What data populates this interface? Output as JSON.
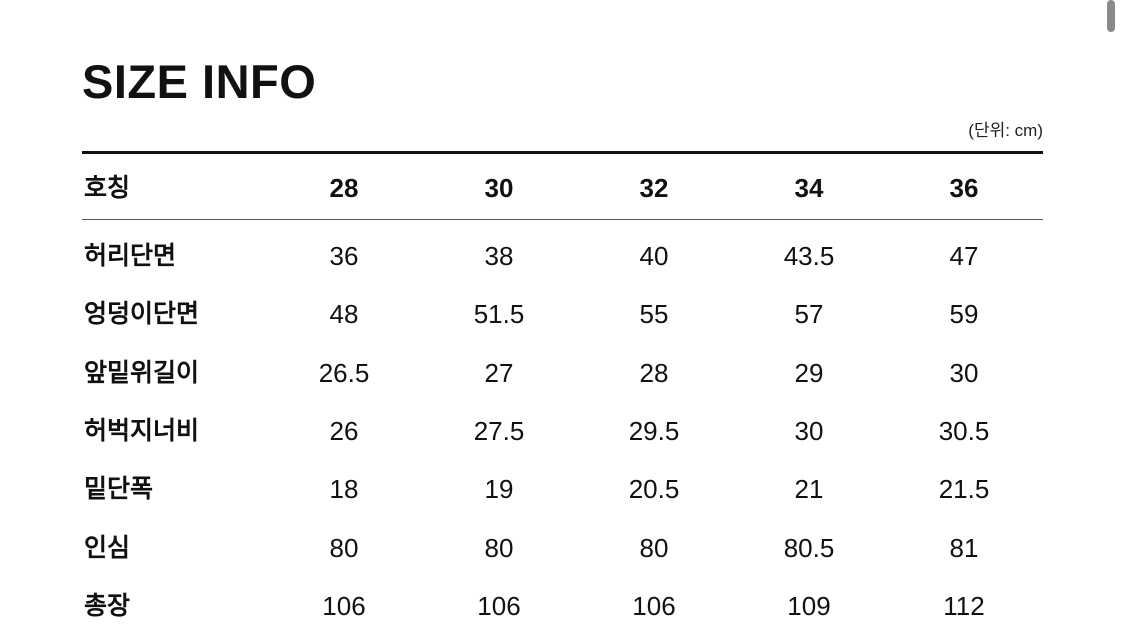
{
  "title": "SIZE INFO",
  "unit": "(단위: cm)",
  "table": {
    "header_label": "호칭",
    "sizes": [
      "28",
      "30",
      "32",
      "34",
      "36"
    ],
    "rows": [
      {
        "label": "허리단면",
        "values": [
          "36",
          "38",
          "40",
          "43.5",
          "47"
        ]
      },
      {
        "label": "엉덩이단면",
        "values": [
          "48",
          "51.5",
          "55",
          "57",
          "59"
        ]
      },
      {
        "label": "앞밑위길이",
        "values": [
          "26.5",
          "27",
          "28",
          "29",
          "30"
        ]
      },
      {
        "label": "허벅지너비",
        "values": [
          "26",
          "27.5",
          "29.5",
          "30",
          "30.5"
        ]
      },
      {
        "label": "밑단폭",
        "values": [
          "18",
          "19",
          "20.5",
          "21",
          "21.5"
        ]
      },
      {
        "label": "인심",
        "values": [
          "80",
          "80",
          "80",
          "80.5",
          "81"
        ]
      },
      {
        "label": "총장",
        "values": [
          "106",
          "106",
          "106",
          "109",
          "112"
        ]
      }
    ]
  }
}
